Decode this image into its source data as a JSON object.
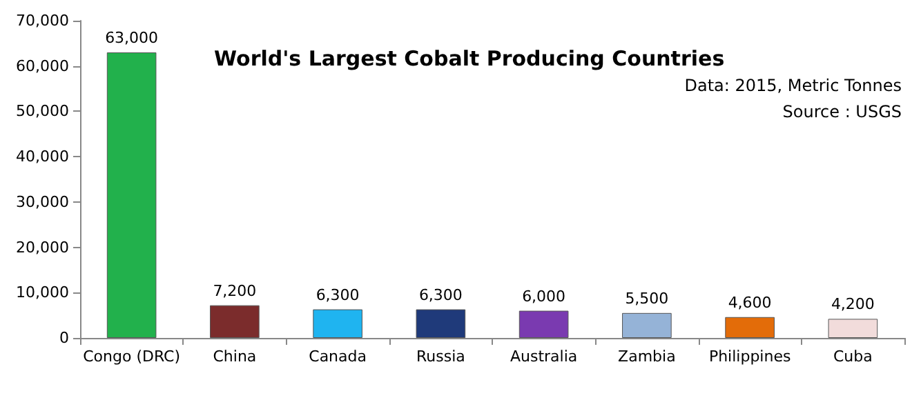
{
  "chart_data": {
    "type": "bar",
    "title": "World's Largest Cobalt Producing Countries",
    "categories": [
      "Congo (DRC)",
      "China",
      "Canada",
      "Russia",
      "Australia",
      "Zambia",
      "Philippines",
      "Cuba"
    ],
    "values": [
      63000,
      7200,
      6300,
      6300,
      6000,
      5500,
      4600,
      4200
    ],
    "value_labels": [
      "63,000",
      "7,200",
      "6,300",
      "6,300",
      "6,000",
      "5,500",
      "4,600",
      "4,200"
    ],
    "colors": [
      "#22b14c",
      "#7b2c2c",
      "#1fb4f0",
      "#1f3a7a",
      "#7a3ab0",
      "#95b3d7",
      "#e36c09",
      "#f2dcdb"
    ],
    "ylim": [
      0,
      70000
    ],
    "yticks": [
      0,
      {
        "value": 10000,
        "label": "10,000"
      },
      {
        "value": 20000,
        "label": "20,000"
      },
      {
        "value": 30000,
        "label": "30,000"
      },
      {
        "value": 40000,
        "label": "40,000"
      },
      {
        "value": 50000,
        "label": "50,000"
      },
      {
        "value": 60000,
        "label": "60,000"
      },
      {
        "value": 70000,
        "label": "70,000"
      }
    ],
    "grid": false,
    "annotations": [
      "Data: 2015, Metric Tonnes",
      "Source : USGS"
    ]
  }
}
